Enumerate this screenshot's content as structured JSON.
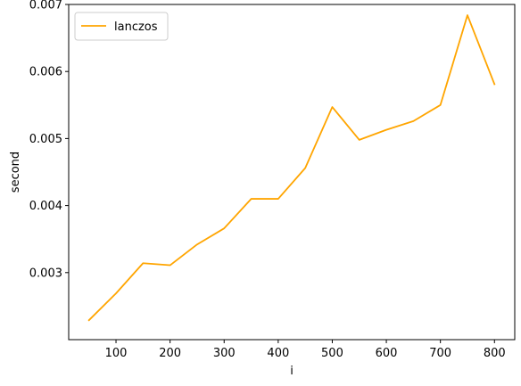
{
  "chart_data": {
    "type": "line",
    "title": "",
    "xlabel": "i",
    "ylabel": "second",
    "xlim": [
      12.5,
      837.5
    ],
    "ylim": [
      0.002,
      0.007
    ],
    "x_ticks": [
      100,
      200,
      300,
      400,
      500,
      600,
      700,
      800
    ],
    "y_ticks": [
      0.003,
      0.004,
      0.005,
      0.006,
      0.007
    ],
    "x_tick_labels": [
      "100",
      "200",
      "300",
      "400",
      "500",
      "600",
      "700",
      "800"
    ],
    "y_tick_labels": [
      "0.003",
      "0.004",
      "0.005",
      "0.006",
      "0.007"
    ],
    "grid": false,
    "legend_position": "top-left",
    "series": [
      {
        "name": "lanczos",
        "color": "#ffa500",
        "x": [
          50,
          100,
          150,
          200,
          250,
          300,
          350,
          400,
          450,
          500,
          550,
          600,
          650,
          700,
          750,
          800
        ],
        "y": [
          0.00229,
          0.00269,
          0.00314,
          0.00311,
          0.00342,
          0.00366,
          0.0041,
          0.0041,
          0.00456,
          0.00547,
          0.00498,
          0.00513,
          0.00526,
          0.0055,
          0.00684,
          0.00581
        ]
      }
    ]
  }
}
